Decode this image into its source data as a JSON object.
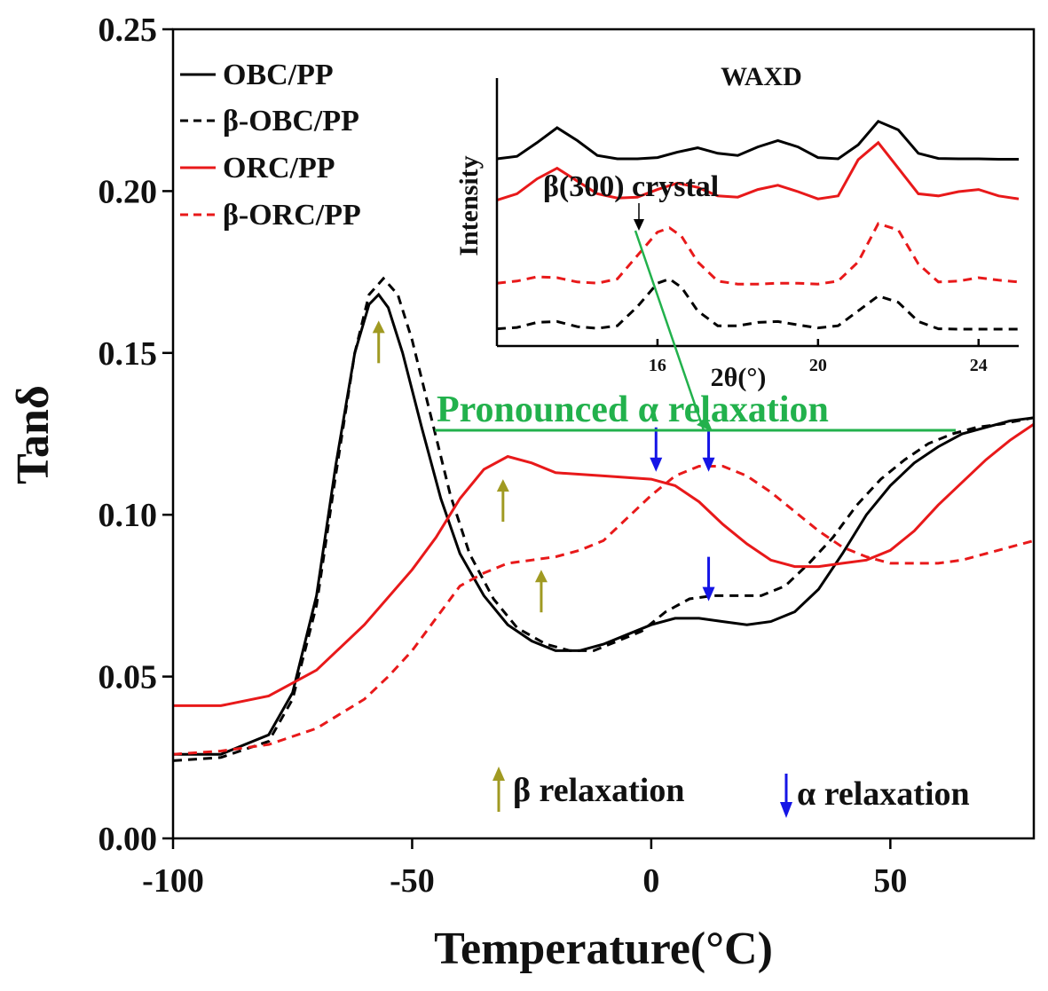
{
  "chart_data": {
    "type": "line",
    "xlabel": "Temperature(°C)",
    "ylabel": "Tanδ",
    "xlim": [
      -100,
      80
    ],
    "ylim": [
      0.0,
      0.25
    ],
    "xticks": [
      -100,
      -50,
      0,
      50
    ],
    "xtick_labels": [
      "-100",
      "-50",
      "0",
      "50"
    ],
    "yticks": [
      0.0,
      0.05,
      0.1,
      0.15,
      0.2,
      0.25
    ],
    "ytick_labels": [
      "0.00",
      "0.05",
      "0.10",
      "0.15",
      "0.20",
      "0.25"
    ],
    "legend_position": "top-left",
    "series": [
      {
        "name": "OBC/PP",
        "color": "#000000",
        "dash": "solid",
        "x": [
          -100,
          -90,
          -80,
          -75,
          -70,
          -66,
          -62,
          -59,
          -57,
          -55,
          -52,
          -48,
          -44,
          -40,
          -35,
          -30,
          -25,
          -20,
          -15,
          -10,
          -5,
          0,
          5,
          10,
          15,
          20,
          25,
          30,
          35,
          40,
          45,
          50,
          55,
          60,
          65,
          70,
          75,
          80
        ],
        "y": [
          0.026,
          0.026,
          0.032,
          0.045,
          0.075,
          0.115,
          0.15,
          0.165,
          0.168,
          0.164,
          0.15,
          0.127,
          0.105,
          0.088,
          0.075,
          0.066,
          0.061,
          0.058,
          0.058,
          0.06,
          0.063,
          0.066,
          0.068,
          0.068,
          0.067,
          0.066,
          0.067,
          0.07,
          0.077,
          0.088,
          0.1,
          0.109,
          0.116,
          0.121,
          0.125,
          0.127,
          0.129,
          0.13
        ]
      },
      {
        "name": "β-OBC/PP",
        "color": "#000000",
        "dash": "dashed",
        "x": [
          -100,
          -90,
          -80,
          -75,
          -70,
          -66,
          -62,
          -59,
          -56,
          -53,
          -50,
          -46,
          -42,
          -38,
          -33,
          -28,
          -22,
          -17,
          -12,
          -7,
          -2,
          3,
          8,
          13,
          18,
          23,
          28,
          33,
          38,
          43,
          48,
          53,
          58,
          63,
          68,
          73,
          80
        ],
        "y": [
          0.024,
          0.025,
          0.03,
          0.043,
          0.072,
          0.112,
          0.15,
          0.168,
          0.173,
          0.168,
          0.154,
          0.13,
          0.106,
          0.088,
          0.074,
          0.065,
          0.06,
          0.058,
          0.058,
          0.061,
          0.064,
          0.07,
          0.074,
          0.075,
          0.075,
          0.075,
          0.078,
          0.085,
          0.093,
          0.103,
          0.111,
          0.117,
          0.122,
          0.125,
          0.127,
          0.128,
          0.13
        ]
      },
      {
        "name": "ORC/PP",
        "color": "#e8191a",
        "dash": "solid",
        "x": [
          -100,
          -90,
          -80,
          -70,
          -60,
          -50,
          -45,
          -40,
          -35,
          -30,
          -25,
          -20,
          -10,
          0,
          5,
          10,
          15,
          20,
          25,
          30,
          35,
          40,
          45,
          50,
          55,
          60,
          65,
          70,
          75,
          80
        ],
        "y": [
          0.041,
          0.041,
          0.044,
          0.052,
          0.066,
          0.083,
          0.093,
          0.105,
          0.114,
          0.118,
          0.116,
          0.113,
          0.112,
          0.111,
          0.109,
          0.104,
          0.097,
          0.091,
          0.086,
          0.084,
          0.084,
          0.085,
          0.086,
          0.089,
          0.095,
          0.103,
          0.11,
          0.117,
          0.123,
          0.128
        ]
      },
      {
        "name": "β-ORC/PP",
        "color": "#e8191a",
        "dash": "dashed",
        "x": [
          -100,
          -90,
          -80,
          -70,
          -60,
          -55,
          -50,
          -45,
          -40,
          -35,
          -30,
          -25,
          -20,
          -15,
          -10,
          -5,
          0,
          5,
          10,
          15,
          20,
          25,
          30,
          35,
          40,
          45,
          50,
          55,
          60,
          65,
          70,
          75,
          80
        ],
        "y": [
          0.026,
          0.027,
          0.029,
          0.034,
          0.043,
          0.05,
          0.058,
          0.068,
          0.078,
          0.082,
          0.085,
          0.086,
          0.087,
          0.089,
          0.092,
          0.099,
          0.106,
          0.112,
          0.115,
          0.115,
          0.112,
          0.107,
          0.101,
          0.095,
          0.09,
          0.087,
          0.085,
          0.085,
          0.085,
          0.086,
          0.088,
          0.09,
          0.092
        ]
      }
    ],
    "annotations": {
      "pronounced": "Pronounced α relaxation",
      "beta_legend": "β relaxation",
      "alpha_legend": "α relaxation"
    },
    "markers": {
      "beta_color": "#a09a22",
      "alpha_color": "#1515e6",
      "beta": [
        {
          "x": -57,
          "y": 0.16
        },
        {
          "x": -31,
          "y": 0.111
        },
        {
          "x": -23,
          "y": 0.083
        }
      ],
      "alpha": [
        {
          "x": 1,
          "y": 0.127
        },
        {
          "x": 12,
          "y": 0.127
        },
        {
          "x": 12,
          "y": 0.087
        }
      ]
    },
    "inset": {
      "title": "WAXD",
      "xlabel": "2θ(°)",
      "ylabel": "Intensity",
      "xlim": [
        12,
        25
      ],
      "xticks": [
        16,
        20,
        24
      ],
      "xtick_labels": [
        "16",
        "20",
        "24"
      ],
      "annotation": "β(300) crystal",
      "arrow_color": "#22b14c",
      "curves": [
        {
          "name": "OBC/PP",
          "color": "#000000",
          "dash": "solid",
          "offset": 4.0,
          "x": [
            12.0,
            12.5,
            13.0,
            13.5,
            14.0,
            14.5,
            15.0,
            15.5,
            16.0,
            16.5,
            17.0,
            17.5,
            18.0,
            18.5,
            19.0,
            19.5,
            20.0,
            20.5,
            21.0,
            21.5,
            22.0,
            22.5,
            23.0,
            23.5,
            24.0,
            24.5,
            25.0
          ],
          "y": [
            0.02,
            0.08,
            0.4,
            0.75,
            0.45,
            0.1,
            0.02,
            0.02,
            0.05,
            0.18,
            0.28,
            0.15,
            0.1,
            0.3,
            0.45,
            0.3,
            0.05,
            0.02,
            0.35,
            0.9,
            0.7,
            0.15,
            0.03,
            0.02,
            0.02,
            0.01,
            0.01
          ]
        },
        {
          "name": "ORC/PP",
          "color": "#e8191a",
          "dash": "solid",
          "offset": 3.0,
          "x": [
            12.0,
            12.5,
            13.0,
            13.5,
            14.0,
            14.5,
            15.0,
            15.5,
            16.0,
            16.5,
            17.0,
            17.5,
            18.0,
            18.5,
            19.0,
            19.5,
            20.0,
            20.5,
            21.0,
            21.5,
            22.0,
            22.5,
            23.0,
            23.5,
            24.0,
            24.5,
            25.0
          ],
          "y": [
            0.05,
            0.2,
            0.55,
            0.8,
            0.5,
            0.2,
            0.1,
            0.12,
            0.3,
            0.45,
            0.35,
            0.15,
            0.12,
            0.3,
            0.4,
            0.25,
            0.08,
            0.15,
            1.0,
            1.4,
            0.8,
            0.2,
            0.15,
            0.25,
            0.3,
            0.15,
            0.08
          ]
        },
        {
          "name": "β-ORC/PP",
          "color": "#e8191a",
          "dash": "dashed",
          "offset": 1.05,
          "x": [
            12.0,
            12.5,
            13.0,
            13.5,
            14.0,
            14.5,
            15.0,
            15.5,
            16.0,
            16.3,
            16.6,
            17.0,
            17.5,
            18.0,
            18.5,
            19.0,
            19.5,
            20.0,
            20.5,
            21.0,
            21.5,
            22.0,
            22.5,
            23.0,
            23.5,
            24.0,
            24.5,
            25.0
          ],
          "y": [
            0.05,
            0.1,
            0.2,
            0.18,
            0.08,
            0.05,
            0.15,
            0.7,
            1.25,
            1.35,
            1.15,
            0.55,
            0.1,
            0.03,
            0.03,
            0.05,
            0.05,
            0.03,
            0.1,
            0.55,
            1.45,
            1.3,
            0.5,
            0.08,
            0.1,
            0.18,
            0.12,
            0.08
          ]
        },
        {
          "name": "β-OBC/PP",
          "color": "#000000",
          "dash": "dashed",
          "offset": 0.0,
          "x": [
            12.0,
            12.5,
            13.0,
            13.5,
            14.0,
            14.5,
            15.0,
            15.5,
            16.0,
            16.3,
            16.6,
            17.0,
            17.5,
            18.0,
            18.5,
            19.0,
            19.5,
            20.0,
            20.5,
            21.0,
            21.5,
            22.0,
            22.5,
            23.0,
            23.5,
            24.0,
            24.5,
            25.0
          ],
          "y": [
            0.03,
            0.06,
            0.18,
            0.2,
            0.08,
            0.04,
            0.1,
            0.55,
            1.1,
            1.2,
            1.0,
            0.45,
            0.1,
            0.1,
            0.18,
            0.2,
            0.12,
            0.05,
            0.1,
            0.45,
            0.8,
            0.65,
            0.2,
            0.03,
            0.02,
            0.02,
            0.02,
            0.02
          ]
        }
      ]
    }
  }
}
